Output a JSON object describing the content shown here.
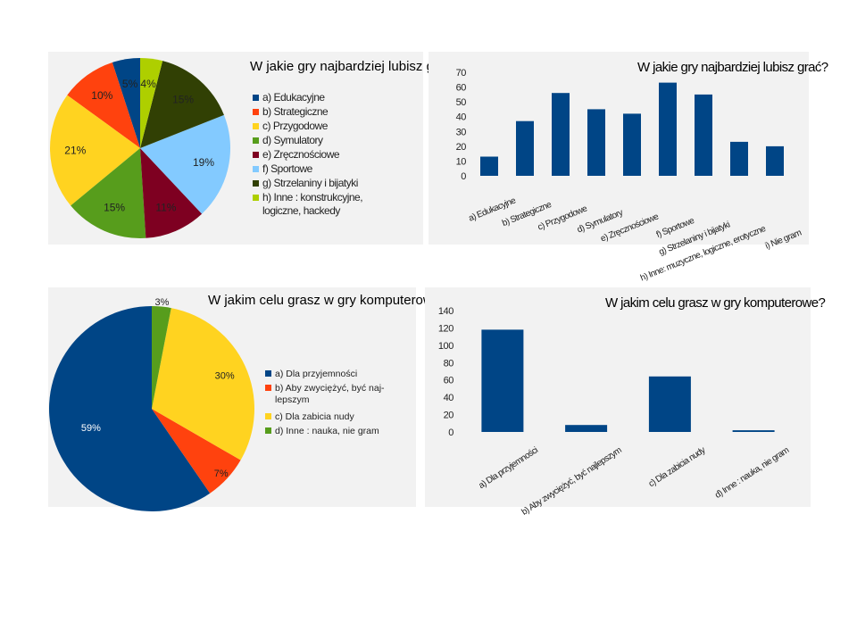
{
  "chart_data": [
    {
      "type": "pie",
      "title": "W jakie gry najbardziej lubisz grać?",
      "labels": [
        "a) Edukacyjne",
        "b) Strategiczne",
        "c) Przygodowe",
        "d) Symulatory",
        "e) Zręcznościowe",
        "f) Sportowe",
        "g) Strzelaniny i bijatyki",
        "h) Inne : konstrukcyjne, logiczne, hackedy"
      ],
      "values": [
        5,
        10,
        21,
        15,
        11,
        19,
        15,
        4
      ],
      "value_labels": [
        "5%",
        "10%",
        "21%",
        "15%",
        "11%",
        "19%",
        "15%",
        "4%"
      ],
      "colors": [
        "#004586",
        "#ff420e",
        "#ffd320",
        "#579d1c",
        "#7e0021",
        "#83caff",
        "#314004",
        "#aecf00"
      ]
    },
    {
      "type": "bar",
      "title": "W jakie gry najbardziej lubisz grać?",
      "categories": [
        "a) Edukacyjne",
        "b) Strategiczne",
        "c) Przygodowe",
        "d) Symulatory",
        "e) Zręcznościowe",
        "f) Sportowe",
        "g) Strzelaniny i bijatyki",
        "h) Inne: muzyczne, logiczne, erotyczne",
        "i) Nie gram"
      ],
      "values": [
        13,
        37,
        56,
        45,
        42,
        63,
        55,
        23,
        20
      ],
      "ylim": [
        0,
        70
      ],
      "yticks": [
        "0",
        "10",
        "20",
        "30",
        "40",
        "50",
        "60",
        "70"
      ],
      "color": "#004586"
    },
    {
      "type": "pie",
      "title": "W jakim celu grasz w gry komputerowe?",
      "labels": [
        "a) Dla przyjemności",
        "b) Aby zwyciężyć, być naj-lepszym",
        "c) Dla zabicia nudy",
        "d) Inne : nauka, nie gram"
      ],
      "values": [
        59,
        7,
        30,
        3
      ],
      "value_labels": [
        "59%",
        "7%",
        "30%",
        "3%"
      ],
      "colors": [
        "#004586",
        "#ff420e",
        "#ffd320",
        "#579d1c"
      ]
    },
    {
      "type": "bar",
      "title": "W jakim celu grasz w gry komputerowe?",
      "categories": [
        "a) Dla przyjemności",
        "b) Aby zwyciężyć, być najlepszym",
        "c) Dla zabicia nudy",
        "d) Inne : nauka, nie gram"
      ],
      "values": [
        118,
        8,
        64,
        2
      ],
      "ylim": [
        0,
        140
      ],
      "yticks": [
        "0",
        "20",
        "40",
        "60",
        "80",
        "100",
        "120",
        "140"
      ],
      "color": "#004586"
    }
  ]
}
